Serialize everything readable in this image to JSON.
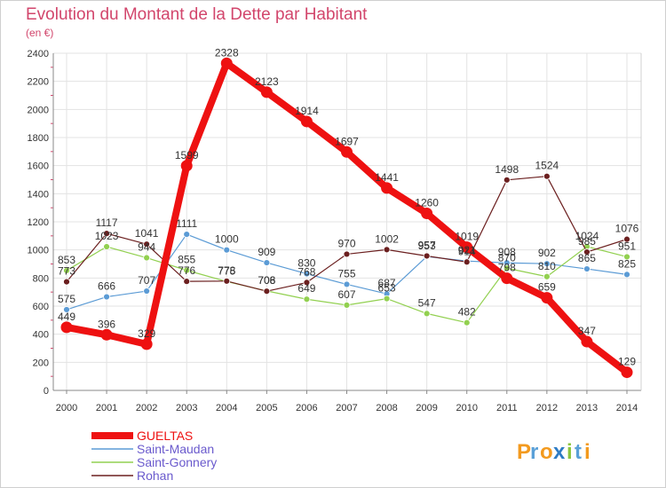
{
  "header": {
    "title": "Evolution du Montant de la Dette par Habitant",
    "subtitle": "(en €)"
  },
  "brand": {
    "letters": [
      "P",
      "r",
      "o",
      "x",
      "i",
      "t",
      "i"
    ],
    "colors": [
      "#f39a1e",
      "#5aa0d8",
      "#f39a1e",
      "#2f7cc4",
      "#8cc63f",
      "#5aa0d8",
      "#f39a1e"
    ]
  },
  "chart_data": {
    "type": "line",
    "x": [
      "2000",
      "2001",
      "2002",
      "2003",
      "2004",
      "2005",
      "2006",
      "2007",
      "2008",
      "2009",
      "2010",
      "2011",
      "2012",
      "2013",
      "2014"
    ],
    "ylim": [
      0,
      2400
    ],
    "yticks": [
      "0",
      "200",
      "400",
      "600",
      "800",
      "1000",
      "1200",
      "1400",
      "1600",
      "1800",
      "2000",
      "2200",
      "2400"
    ],
    "grid": true,
    "legend": "bottom-left",
    "series": [
      {
        "name": "GUELTAS",
        "color": "#ee1111",
        "values": [
          449,
          396,
          329,
          1599,
          2328,
          2123,
          1914,
          1697,
          1441,
          1260,
          1019,
          798,
          659,
          347,
          129
        ]
      },
      {
        "name": "Saint-Maudan",
        "color": "#5b9bd5",
        "values": [
          575,
          666,
          707,
          1111,
          1000,
          909,
          830,
          755,
          687,
          953,
          921,
          908,
          902,
          865,
          825
        ]
      },
      {
        "name": "Saint-Gonnery",
        "color": "#92d050",
        "values": [
          853,
          1023,
          944,
          855,
          775,
          708,
          649,
          607,
          653,
          547,
          482,
          870,
          810,
          1024,
          951
        ]
      },
      {
        "name": "Rohan",
        "color": "#6b1f1f",
        "values": [
          773,
          1117,
          1041,
          776,
          778,
          706,
          768,
          970,
          1002,
          957,
          914,
          1498,
          1524,
          985,
          1076
        ]
      }
    ]
  }
}
